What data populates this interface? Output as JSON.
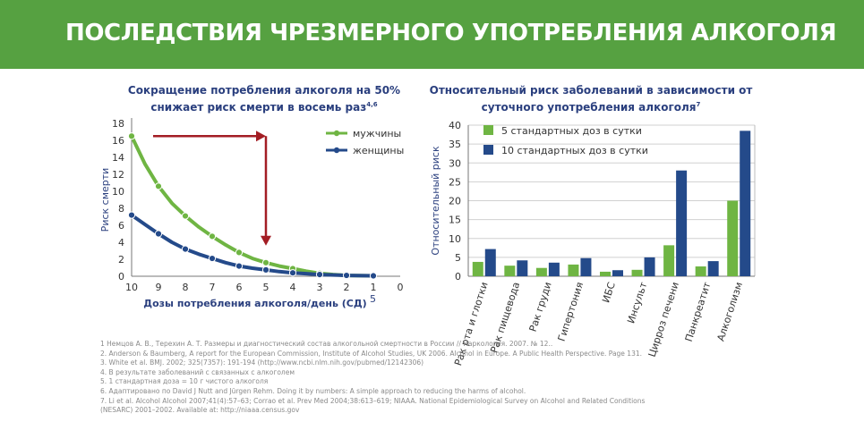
{
  "banner": {
    "title": "ПОСЛЕДСТВИЯ ЧРЕЗМЕРНОГО УПОТРЕБЛЕНИЯ АЛКОГОЛЯ"
  },
  "colors": {
    "banner": "#56a141",
    "green": "#6fb543",
    "blue": "#244a8a",
    "arrow": "#a31d24",
    "title": "#2a3f7e"
  },
  "chart_data": [
    {
      "type": "line",
      "title_line1": "Сокращение потребления алкоголя на 50%",
      "title_line2": "снижает риск смерти в восемь раз",
      "title_sup": "4,6",
      "xlabel": "Дозы потребления алкоголя/день (СД)",
      "xlabel_sup": "5",
      "ylabel": "Риск смерти",
      "x": [
        10,
        9,
        8,
        7,
        6,
        5,
        4,
        3,
        2,
        1,
        0
      ],
      "x_ticks": [
        "10",
        "9",
        "8",
        "7",
        "6",
        "5",
        "4",
        "3",
        "2",
        "1",
        "0"
      ],
      "xlim": [
        10,
        0
      ],
      "ylim": [
        0,
        18
      ],
      "y_ticks": [
        "0",
        "2",
        "4",
        "6",
        "8",
        "10",
        "12",
        "14",
        "16",
        "18"
      ],
      "series": [
        {
          "name": "мужчины",
          "color": "#6fb543",
          "curve": [
            [
              10,
              16.5
            ],
            [
              9.5,
              13.2
            ],
            [
              9,
              10.6
            ],
            [
              8.5,
              8.6
            ],
            [
              8,
              7.1
            ],
            [
              7.5,
              5.8
            ],
            [
              7,
              4.7
            ],
            [
              6.5,
              3.7
            ],
            [
              6,
              2.8
            ],
            [
              5.5,
              2.1
            ],
            [
              5,
              1.6
            ],
            [
              4.5,
              1.2
            ],
            [
              4,
              0.9
            ],
            [
              3.5,
              0.6
            ],
            [
              3,
              0.35
            ],
            [
              2.5,
              0.2
            ],
            [
              2,
              0.1
            ],
            [
              1,
              0.05
            ]
          ],
          "markers": [
            [
              10,
              16.5
            ],
            [
              9,
              10.6
            ],
            [
              8,
              7.1
            ],
            [
              7,
              4.7
            ],
            [
              6,
              2.8
            ],
            [
              5,
              1.6
            ],
            [
              4,
              0.9
            ],
            [
              3,
              0.35
            ]
          ]
        },
        {
          "name": "женщины",
          "color": "#244a8a",
          "curve": [
            [
              10,
              7.2
            ],
            [
              9.5,
              6.1
            ],
            [
              9,
              5.0
            ],
            [
              8.5,
              4.0
            ],
            [
              8,
              3.2
            ],
            [
              7.5,
              2.6
            ],
            [
              7,
              2.1
            ],
            [
              6.5,
              1.6
            ],
            [
              6,
              1.2
            ],
            [
              5.5,
              0.95
            ],
            [
              5,
              0.75
            ],
            [
              4.5,
              0.55
            ],
            [
              4,
              0.4
            ],
            [
              3.5,
              0.3
            ],
            [
              3,
              0.2
            ],
            [
              2,
              0.1
            ],
            [
              1,
              0.05
            ]
          ],
          "markers": [
            [
              10,
              7.2
            ],
            [
              9,
              5.0
            ],
            [
              8,
              3.2
            ],
            [
              7,
              2.1
            ],
            [
              6,
              1.2
            ],
            [
              5,
              0.75
            ],
            [
              4,
              0.4
            ],
            [
              3,
              0.2
            ],
            [
              2,
              0.1
            ],
            [
              1,
              0.05
            ]
          ]
        }
      ],
      "annotation_arrow": {
        "from": [
          9.2,
          16.5
        ],
        "corner": [
          5,
          16.5
        ],
        "to": [
          5,
          3.6
        ]
      }
    },
    {
      "type": "bar",
      "title_line1": "Относительный риск заболеваний в зависимости от",
      "title_line2": "суточного употребления алкоголя",
      "title_sup": "7",
      "ylabel": "Относительный риск",
      "ylim": [
        0,
        40
      ],
      "y_ticks": [
        "0",
        "5",
        "10",
        "15",
        "20",
        "25",
        "30",
        "35",
        "40"
      ],
      "categories": [
        "Рак рта и глотки",
        "Рак пищевода",
        "Рак груди",
        "Гипертония",
        "ИБС",
        "Инсульт",
        "Цирроз печени",
        "Панкреатит",
        "Алкоголизм"
      ],
      "series": [
        {
          "name": "5 стандартных доз в сутки",
          "color": "#6fb543",
          "values": [
            3.8,
            2.8,
            2.2,
            3.1,
            1.2,
            1.7,
            8.2,
            2.6,
            20.0
          ]
        },
        {
          "name": "10 стандартных доз в сутки",
          "color": "#244a8a",
          "values": [
            7.2,
            4.2,
            3.6,
            4.8,
            1.6,
            5.0,
            28.0,
            4.0,
            38.5
          ]
        }
      ]
    }
  ],
  "footnotes": [
    "1 Немцов А. В., Терехин А. Т. Размеры и диагностический состав алкогольной смертности в России // Наркология. 2007. № 12..",
    "2. Anderson & Baumberg, A report for the European Commission, Institute of Alcohol Studies, UK 2006. Alcohol in Europe. A Public Health Perspective. Page 131.",
    "3. White et al. BMJ. 2002; 325(7357): 191-194 (http://www.ncbi.nlm.nih.gov/pubmed/12142306)",
    "4. В результате заболеваний с связанных с алкоголем",
    "5. 1 стандартная доза = 10 г чистого алкоголя",
    "6. Адаптировано по David J Nutt and Jürgen Rehm. Doing it by numbers: A simple approach to reducing the harms of alcohol.",
    "7. Li et al. Alcohol Alcohol 2007;41(4):57–63; Corrao et al. Prev Med 2004;38:613–619; NIAAA. National Epidemiological Survey on Alcohol and Related Conditions",
    "(NESARC) 2001–2002. Available at: http://niaaa.census.gov"
  ]
}
